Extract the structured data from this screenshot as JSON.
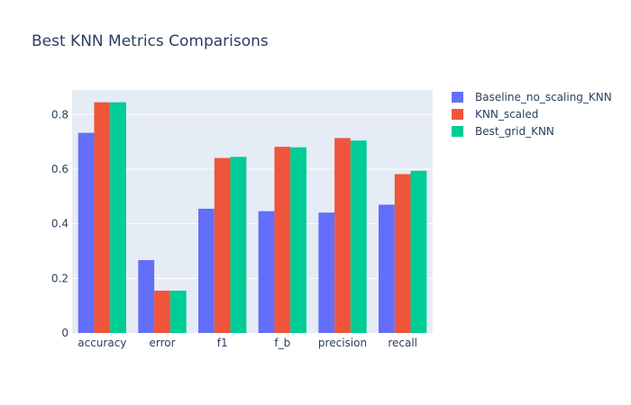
{
  "chart_data": {
    "type": "bar",
    "title": "Best KNN Metrics Comparisons",
    "xlabel": "",
    "ylabel": "",
    "categories": [
      "accuracy",
      "error",
      "f1",
      "f_b",
      "precision",
      "recall"
    ],
    "series": [
      {
        "name": "Baseline_no_scaling_KNN",
        "color": "#636efa",
        "values": [
          0.733,
          0.267,
          0.455,
          0.446,
          0.441,
          0.47
        ]
      },
      {
        "name": "KNN_scaled",
        "color": "#ef553b",
        "values": [
          0.845,
          0.155,
          0.641,
          0.682,
          0.714,
          0.582
        ]
      },
      {
        "name": "Best_grid_KNN",
        "color": "#00cc96",
        "values": [
          0.845,
          0.155,
          0.645,
          0.68,
          0.705,
          0.594
        ]
      }
    ],
    "ylim": [
      0,
      0.89
    ],
    "yticks": [
      0,
      0.2,
      0.4,
      0.6,
      0.8
    ],
    "ytick_labels": [
      "0",
      "0.2",
      "0.4",
      "0.6",
      "0.8"
    ],
    "grid": true,
    "legend_position": "top-right",
    "plot_background": "#e5ecf6",
    "grid_color": "#ffffff"
  }
}
